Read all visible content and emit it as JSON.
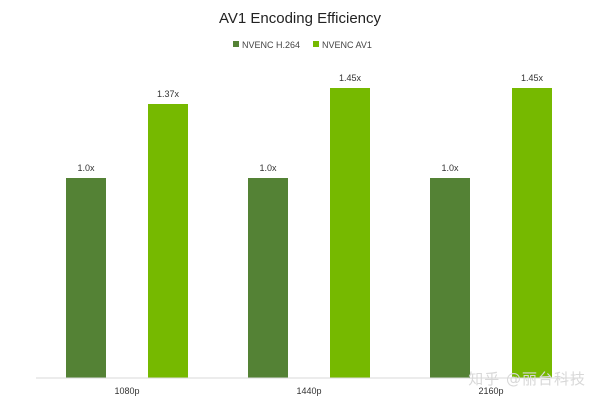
{
  "chart_data": {
    "type": "bar",
    "title": "AV1 Encoding Efficiency",
    "categories": [
      "1080p",
      "1440p",
      "2160p"
    ],
    "series": [
      {
        "name": "NVENC H.264",
        "values": [
          1.0,
          1.0,
          1.0
        ],
        "labels": [
          "1.0x",
          "1.0x",
          "1.0x"
        ],
        "color": "#548235"
      },
      {
        "name": "NVENC AV1",
        "values": [
          1.37,
          1.45,
          1.45
        ],
        "labels": [
          "1.37x",
          "1.45x",
          "1.45x"
        ],
        "color": "#76B900"
      }
    ],
    "ylim": [
      0,
      1.6
    ],
    "grid": false,
    "legend_position": "top-center"
  },
  "watermark": "知乎 @丽台科技"
}
